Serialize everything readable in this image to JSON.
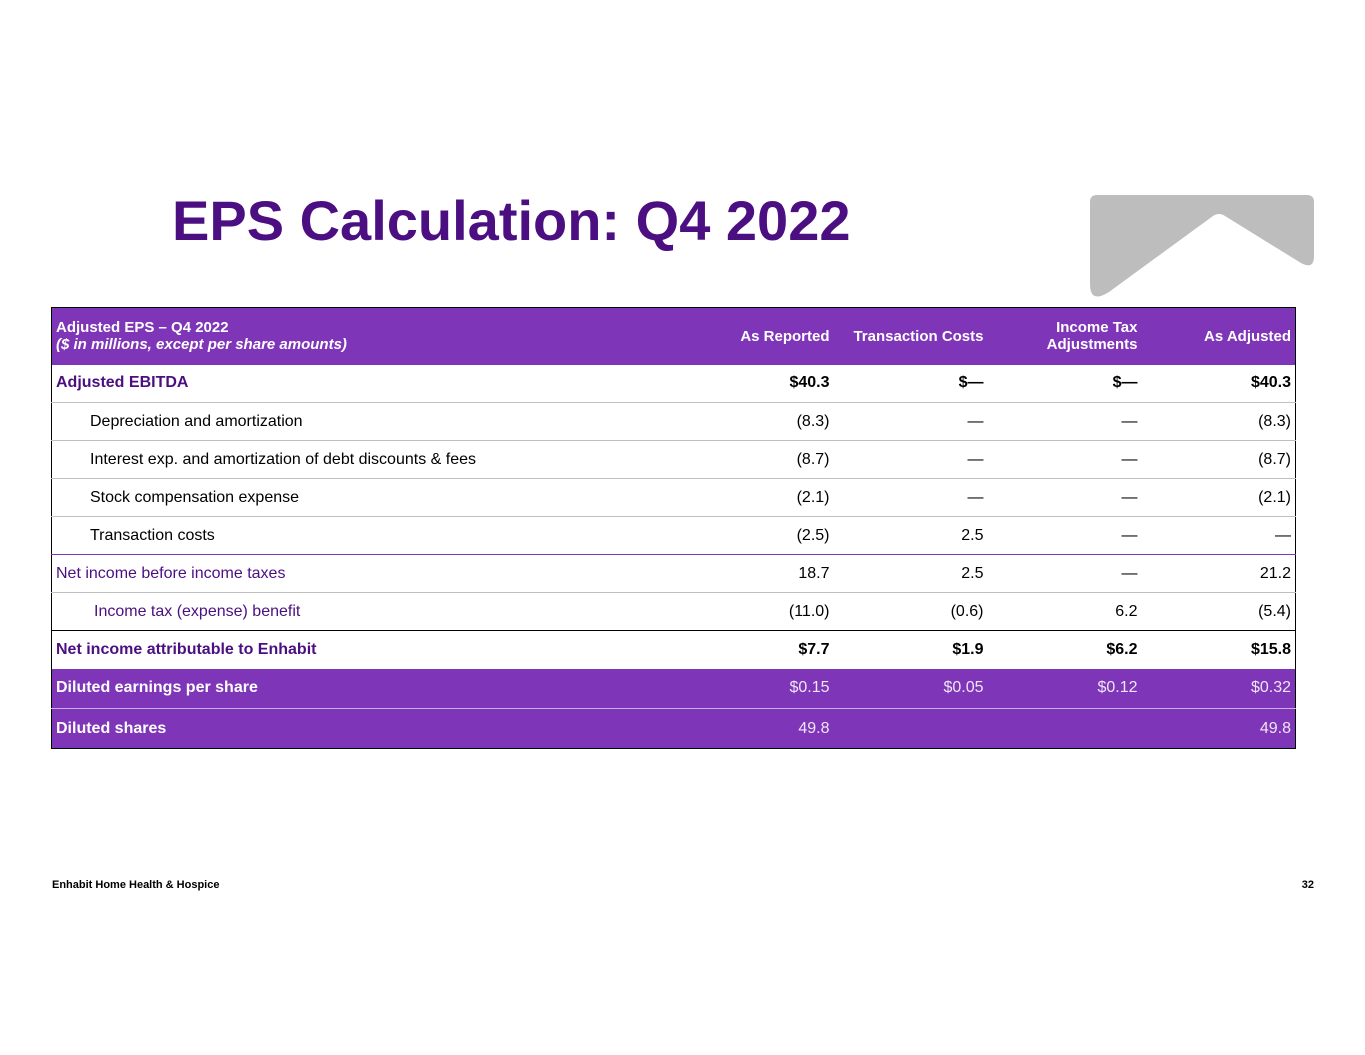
{
  "slide": {
    "title": "EPS Calculation: Q4 2022",
    "footer_company": "Enhabit Home Health & Hospice",
    "page_number": "32"
  },
  "table": {
    "header": {
      "label_line1": "Adjusted EPS – Q4 2022",
      "label_line2": "($ in millions, except per share amounts)",
      "col1": "As Reported",
      "col2": "Transaction Costs",
      "col3_line1": "Income Tax",
      "col3_line2": "Adjustments",
      "col4": "As Adjusted"
    },
    "rows": [
      {
        "label": "Adjusted EBITDA",
        "values": [
          "$40.3",
          "$—",
          "$—",
          "$40.3"
        ]
      },
      {
        "label": "Depreciation and amortization",
        "values": [
          "(8.3)",
          "—",
          "—",
          "(8.3)"
        ]
      },
      {
        "label": "Interest exp. and amortization of debt discounts & fees",
        "values": [
          "(8.7)",
          "—",
          "—",
          "(8.7)"
        ]
      },
      {
        "label": "Stock compensation expense",
        "values": [
          "(2.1)",
          "—",
          "—",
          "(2.1)"
        ]
      },
      {
        "label": "Transaction costs",
        "values": [
          "(2.5)",
          "2.5",
          "—",
          "—"
        ]
      },
      {
        "label": "Net income before income taxes",
        "values": [
          "18.7",
          "2.5",
          "—",
          "21.2"
        ]
      },
      {
        "label": "Income tax (expense) benefit",
        "values": [
          "(11.0)",
          "(0.6)",
          "6.2",
          "(5.4)"
        ]
      },
      {
        "label": "Net income attributable to Enhabit",
        "values": [
          "$7.7",
          "$1.9",
          "$6.2",
          "$15.8"
        ]
      },
      {
        "label": "Diluted earnings per share",
        "values": [
          "$0.15",
          "$0.05",
          "$0.12",
          "$0.32"
        ]
      },
      {
        "label": "Diluted shares",
        "values": [
          "49.8",
          "",
          "",
          "49.8"
        ]
      }
    ]
  },
  "colors": {
    "brand_purple": "#4b0f82",
    "header_purple": "#7f35b8",
    "logo_gray": "#bdbdbd"
  }
}
